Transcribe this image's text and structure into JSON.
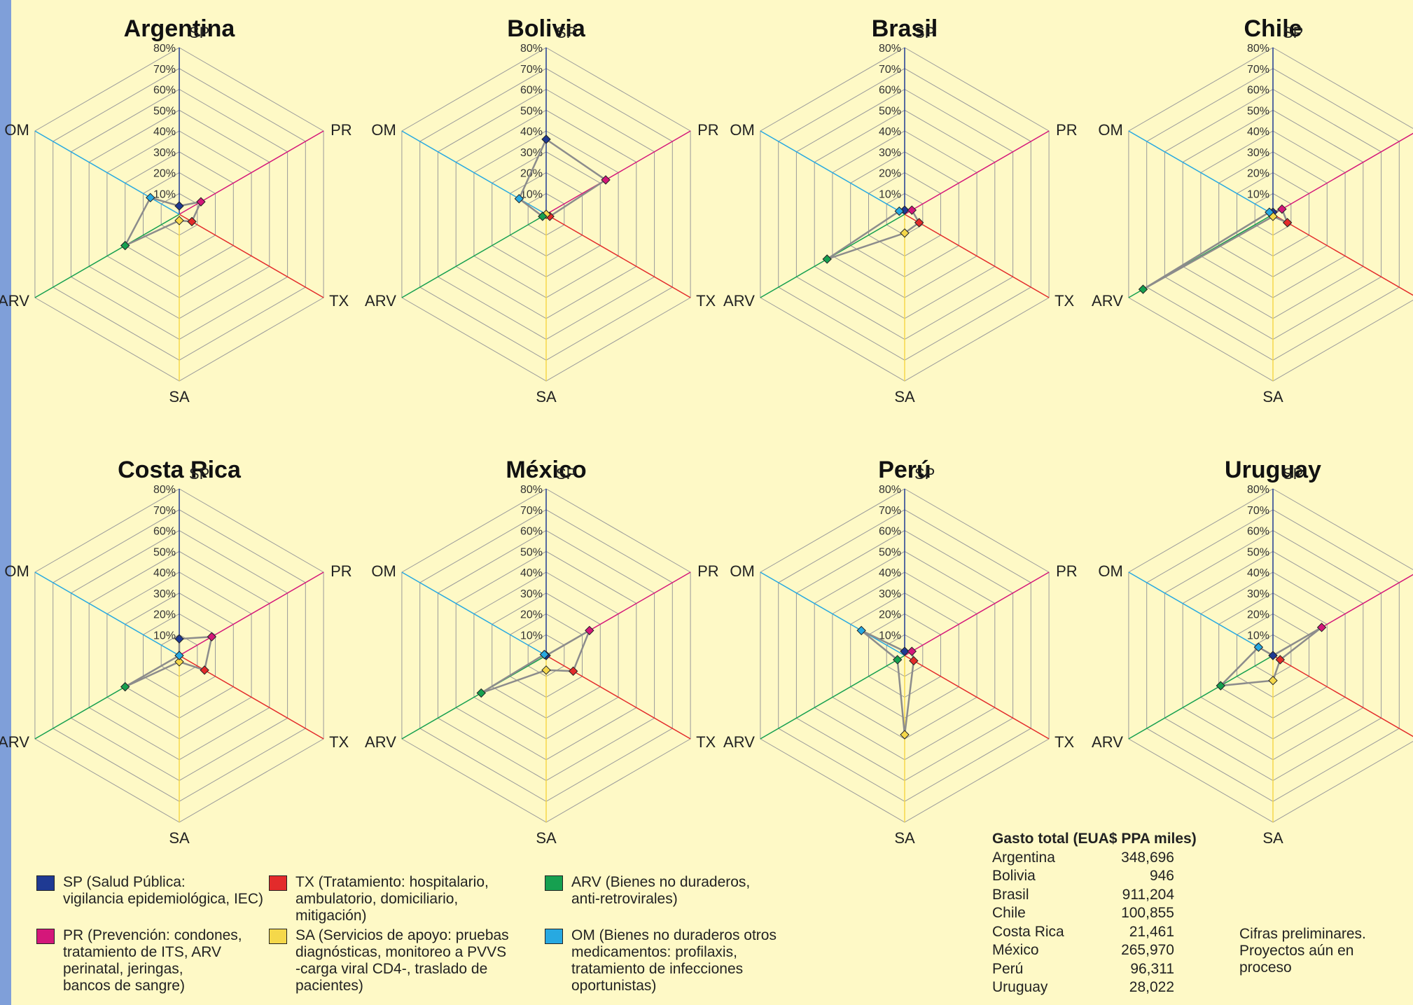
{
  "chart_data": {
    "type": "radar",
    "axes": [
      "SP",
      "PR",
      "TX",
      "SA",
      "ARV",
      "OM"
    ],
    "axis_colors": {
      "SP": "#1f3a93",
      "PR": "#d4177a",
      "TX": "#e32b2b",
      "SA": "#f5d84a",
      "ARV": "#16a050",
      "OM": "#27a9e1"
    },
    "tick_labels": [
      "10%",
      "20%",
      "30%",
      "40%",
      "50%",
      "60%",
      "70%",
      "80%"
    ],
    "rmax": 80,
    "charts": [
      {
        "title": "Argentina",
        "values": [
          4,
          12,
          7,
          3,
          30,
          16
        ]
      },
      {
        "title": "Bolivia",
        "values": [
          36,
          33,
          2,
          0,
          2,
          15
        ]
      },
      {
        "title": "Brasil",
        "values": [
          2,
          4,
          8,
          9,
          43,
          3
        ]
      },
      {
        "title": "Chile",
        "values": [
          1,
          5,
          8,
          1,
          72,
          2
        ]
      },
      {
        "title": "Costa Rica",
        "values": [
          8,
          18,
          14,
          3,
          30,
          0
        ]
      },
      {
        "title": "México",
        "values": [
          0,
          24,
          15,
          7,
          36,
          1
        ]
      },
      {
        "title": "Perú",
        "values": [
          2,
          4,
          5,
          38,
          4,
          24
        ]
      },
      {
        "title": "Uruguay",
        "values": [
          0,
          27,
          4,
          12,
          29,
          8
        ]
      }
    ]
  },
  "legend": [
    {
      "code": "SP",
      "color": "#1f3a93",
      "text": "SP (Salud Pública:\nvigilancia epidemiológica, IEC)"
    },
    {
      "code": "TX",
      "color": "#e32b2b",
      "text": "TX (Tratamiento: hospitalario,\nambulatorio, domiciliario, mitigación)"
    },
    {
      "code": "ARV",
      "color": "#16a050",
      "text": "ARV (Bienes no duraderos,\nanti-retrovirales)"
    },
    {
      "code": "PR",
      "color": "#d4177a",
      "text": "PR (Prevención: condones,\ntratamiento de ITS, ARV\nperinatal, jeringas,\nbancos de sangre)"
    },
    {
      "code": "SA",
      "color": "#f5d84a",
      "text": "SA (Servicios de apoyo: pruebas\ndiagnósticas, monitoreo a PVVS\n-carga viral CD4-, traslado de\npacientes)"
    },
    {
      "code": "OM",
      "color": "#27a9e1",
      "text": "OM (Bienes no duraderos otros\nmedicamentos: profilaxis,\ntratamiento de infecciones\noportunistas)"
    }
  ],
  "totals": {
    "header": "Gasto total (EUA$ PPA miles)",
    "rows": [
      {
        "country": "Argentina",
        "value": "348,696"
      },
      {
        "country": "Bolivia",
        "value": "946"
      },
      {
        "country": "Brasil",
        "value": "911,204"
      },
      {
        "country": "Chile",
        "value": "100,855"
      },
      {
        "country": "Costa Rica",
        "value": "21,461"
      },
      {
        "country": "México",
        "value": "265,970"
      },
      {
        "country": "Perú",
        "value": "96,311"
      },
      {
        "country": "Uruguay",
        "value": "28,022"
      }
    ]
  },
  "note": "Cifras preliminares.\nProyectos aún en proceso"
}
